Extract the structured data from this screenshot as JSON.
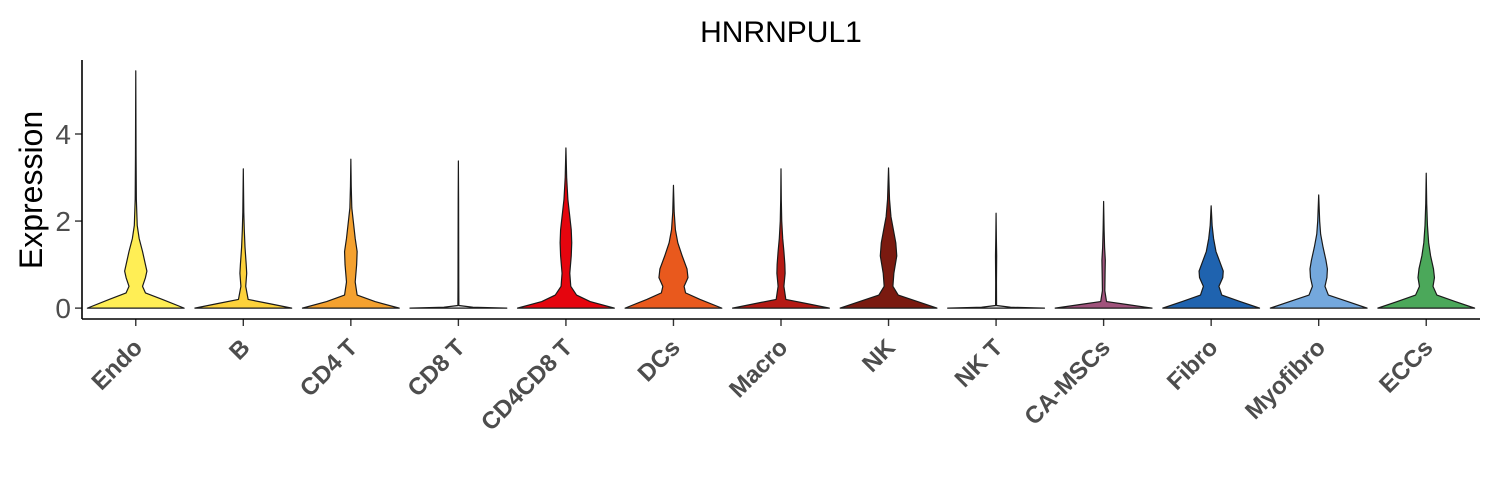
{
  "chart_data": {
    "type": "violin",
    "title": "HNRNPUL1",
    "xlabel": "",
    "ylabel": "Expression",
    "ylim": [
      -0.25,
      5.7
    ],
    "yticks": [
      0,
      2,
      4
    ],
    "legend": "none",
    "grid": false,
    "categories": [
      "Endo",
      "B",
      "CD4 T",
      "CD8 T",
      "CD4CD8 T",
      "DCs",
      "Macro",
      "NK",
      "NK T",
      "CA-MSCs",
      "Fibro",
      "Myofibro",
      "ECCs"
    ],
    "series": [
      {
        "category": "Endo",
        "color": "#FFEE55",
        "max": 5.45,
        "profile": [
          [
            0,
            1.0
          ],
          [
            0.2,
            0.55
          ],
          [
            0.35,
            0.2
          ],
          [
            0.5,
            0.14
          ],
          [
            0.7,
            0.2
          ],
          [
            0.85,
            0.23
          ],
          [
            1.0,
            0.2
          ],
          [
            1.3,
            0.14
          ],
          [
            1.6,
            0.07
          ],
          [
            1.9,
            0.03
          ],
          [
            2.5,
            0.012
          ],
          [
            3.5,
            0.006
          ],
          [
            4.5,
            0.003
          ],
          [
            5.45,
            0
          ]
        ]
      },
      {
        "category": "B",
        "color": "#FDD23B",
        "max": 3.2,
        "profile": [
          [
            0,
            1.0
          ],
          [
            0.1,
            0.55
          ],
          [
            0.2,
            0.1
          ],
          [
            0.5,
            0.05
          ],
          [
            0.8,
            0.07
          ],
          [
            1.0,
            0.06
          ],
          [
            1.4,
            0.035
          ],
          [
            1.8,
            0.02
          ],
          [
            2.2,
            0.01
          ],
          [
            3.2,
            0
          ]
        ]
      },
      {
        "category": "CD4 T",
        "color": "#F4A12F",
        "max": 3.42,
        "profile": [
          [
            0,
            1.0
          ],
          [
            0.15,
            0.5
          ],
          [
            0.3,
            0.13
          ],
          [
            0.6,
            0.09
          ],
          [
            1.0,
            0.12
          ],
          [
            1.3,
            0.13
          ],
          [
            1.6,
            0.09
          ],
          [
            2.0,
            0.05
          ],
          [
            2.3,
            0.02
          ],
          [
            2.8,
            0.008
          ],
          [
            3.42,
            0
          ]
        ]
      },
      {
        "category": "CD8 T",
        "color": "#E8E8E8",
        "max": 3.38,
        "profile": [
          [
            0,
            1.0
          ],
          [
            0.02,
            0.3
          ],
          [
            0.06,
            0.01
          ],
          [
            0.5,
            0.008
          ],
          [
            1.5,
            0.006
          ],
          [
            2.5,
            0.004
          ],
          [
            3.38,
            0
          ]
        ]
      },
      {
        "category": "CD4CD8 T",
        "color": "#E5050E",
        "max": 3.68,
        "profile": [
          [
            0,
            1.0
          ],
          [
            0.15,
            0.5
          ],
          [
            0.3,
            0.22
          ],
          [
            0.5,
            0.1
          ],
          [
            0.8,
            0.08
          ],
          [
            1.2,
            0.11
          ],
          [
            1.5,
            0.12
          ],
          [
            1.8,
            0.11
          ],
          [
            2.2,
            0.07
          ],
          [
            2.5,
            0.04
          ],
          [
            3.0,
            0.015
          ],
          [
            3.68,
            0
          ]
        ]
      },
      {
        "category": "DCs",
        "color": "#E9591D",
        "max": 2.82,
        "profile": [
          [
            0,
            1.0
          ],
          [
            0.2,
            0.55
          ],
          [
            0.35,
            0.25
          ],
          [
            0.5,
            0.22
          ],
          [
            0.7,
            0.3
          ],
          [
            0.9,
            0.28
          ],
          [
            1.2,
            0.18
          ],
          [
            1.5,
            0.09
          ],
          [
            1.8,
            0.04
          ],
          [
            2.2,
            0.015
          ],
          [
            2.82,
            0
          ]
        ]
      },
      {
        "category": "Macro",
        "color": "#B51A14",
        "max": 3.2,
        "profile": [
          [
            0,
            1.0
          ],
          [
            0.1,
            0.55
          ],
          [
            0.2,
            0.1
          ],
          [
            0.5,
            0.06
          ],
          [
            0.8,
            0.085
          ],
          [
            1.0,
            0.08
          ],
          [
            1.3,
            0.06
          ],
          [
            1.6,
            0.035
          ],
          [
            2.0,
            0.015
          ],
          [
            2.5,
            0.006
          ],
          [
            3.2,
            0
          ]
        ]
      },
      {
        "category": "NK",
        "color": "#7A1A10",
        "max": 3.22,
        "profile": [
          [
            0,
            1.0
          ],
          [
            0.15,
            0.6
          ],
          [
            0.3,
            0.2
          ],
          [
            0.5,
            0.09
          ],
          [
            0.8,
            0.11
          ],
          [
            1.2,
            0.17
          ],
          [
            1.5,
            0.15
          ],
          [
            1.8,
            0.1
          ],
          [
            2.1,
            0.05
          ],
          [
            2.5,
            0.02
          ],
          [
            3.22,
            0
          ]
        ]
      },
      {
        "category": "NK T",
        "color": "#E0E0E0",
        "max": 2.18,
        "profile": [
          [
            0,
            1.0
          ],
          [
            0.02,
            0.3
          ],
          [
            0.06,
            0.01
          ],
          [
            0.6,
            0.008
          ],
          [
            1.2,
            0.012
          ],
          [
            1.6,
            0.006
          ],
          [
            2.18,
            0
          ]
        ]
      },
      {
        "category": "CA-MSCs",
        "color": "#A0537C",
        "max": 2.45,
        "profile": [
          [
            0,
            1.0
          ],
          [
            0.08,
            0.5
          ],
          [
            0.15,
            0.06
          ],
          [
            0.4,
            0.025
          ],
          [
            0.8,
            0.03
          ],
          [
            1.1,
            0.035
          ],
          [
            1.4,
            0.02
          ],
          [
            1.8,
            0.01
          ],
          [
            2.45,
            0
          ]
        ]
      },
      {
        "category": "Fibro",
        "color": "#1F63AF",
        "max": 2.35,
        "profile": [
          [
            0,
            1.0
          ],
          [
            0.15,
            0.6
          ],
          [
            0.3,
            0.22
          ],
          [
            0.5,
            0.16
          ],
          [
            0.7,
            0.24
          ],
          [
            0.85,
            0.25
          ],
          [
            1.0,
            0.2
          ],
          [
            1.3,
            0.1
          ],
          [
            1.6,
            0.05
          ],
          [
            1.9,
            0.02
          ],
          [
            2.35,
            0
          ]
        ]
      },
      {
        "category": "Myofibro",
        "color": "#74A8DD",
        "max": 2.6,
        "profile": [
          [
            0,
            1.0
          ],
          [
            0.15,
            0.6
          ],
          [
            0.3,
            0.2
          ],
          [
            0.5,
            0.13
          ],
          [
            0.7,
            0.17
          ],
          [
            0.9,
            0.18
          ],
          [
            1.1,
            0.15
          ],
          [
            1.4,
            0.09
          ],
          [
            1.7,
            0.04
          ],
          [
            2.0,
            0.02
          ],
          [
            2.6,
            0
          ]
        ]
      },
      {
        "category": "ECCs",
        "color": "#4BA85A",
        "max": 3.1,
        "profile": [
          [
            0,
            1.0
          ],
          [
            0.15,
            0.6
          ],
          [
            0.3,
            0.22
          ],
          [
            0.5,
            0.14
          ],
          [
            0.7,
            0.17
          ],
          [
            0.9,
            0.15
          ],
          [
            1.2,
            0.09
          ],
          [
            1.5,
            0.05
          ],
          [
            1.9,
            0.025
          ],
          [
            2.4,
            0.01
          ],
          [
            3.1,
            0
          ]
        ]
      }
    ]
  }
}
